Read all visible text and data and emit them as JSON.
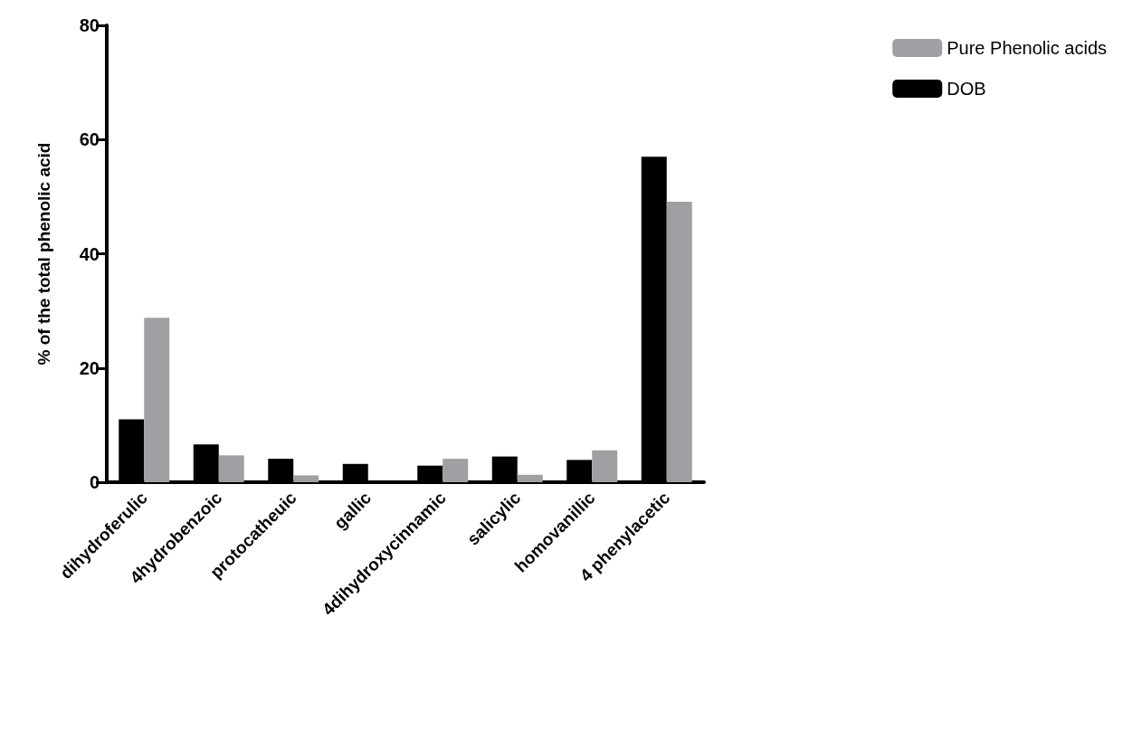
{
  "chart_data": {
    "type": "bar",
    "ylabel": "% of the total phenolic acid",
    "categories": [
      "dihydroferulic",
      "4hydrobenzoic",
      "protocatheuic",
      "gallic",
      "4dihydroxycinnamic",
      "salicylic",
      "homovanillic",
      "4 phenylacetic"
    ],
    "series": [
      {
        "name": "DOB",
        "color": "#000000",
        "values": [
          11,
          6.6,
          4.1,
          3.2,
          2.9,
          4.5,
          3.9,
          57
        ]
      },
      {
        "name": "Pure Phenolic acids",
        "color": "#a0a0a4",
        "values": [
          28.8,
          4.7,
          1.2,
          null,
          4.1,
          1.3,
          5.6,
          49.1
        ]
      }
    ],
    "ylim": [
      0,
      80
    ],
    "yticks": [
      0,
      20,
      40,
      60,
      80
    ],
    "grid": false,
    "legend": "top right"
  }
}
